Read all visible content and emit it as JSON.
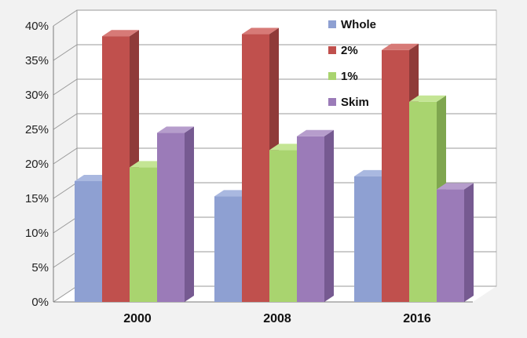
{
  "chart_data": {
    "type": "bar",
    "categories": [
      "2000",
      "2008",
      "2016"
    ],
    "series": [
      {
        "name": "Whole",
        "values": [
          17.5,
          15.3,
          18.2
        ],
        "colors": {
          "front": "#8ea0d2",
          "side": "#6a7db4",
          "top": "#a9b8e0"
        }
      },
      {
        "name": "2%",
        "values": [
          38.5,
          38.8,
          36.5
        ],
        "colors": {
          "front": "#c0504d",
          "side": "#8f3b39",
          "top": "#d77a77"
        }
      },
      {
        "name": "1%",
        "values": [
          19.5,
          22.0,
          29.0
        ],
        "colors": {
          "front": "#a9d46f",
          "side": "#7fa64f",
          "top": "#c4e594"
        }
      },
      {
        "name": "Skim",
        "values": [
          24.5,
          24.0,
          16.3
        ],
        "colors": {
          "front": "#9b7bb8",
          "side": "#765a91",
          "top": "#b69dcc"
        }
      }
    ],
    "ylim": [
      0,
      40
    ],
    "yticks": [
      "0%",
      "5%",
      "10%",
      "15%",
      "20%",
      "25%",
      "30%",
      "35%",
      "40%"
    ],
    "grid": true,
    "legend_position": "top-right",
    "title": "",
    "xlabel": "",
    "ylabel": ""
  }
}
